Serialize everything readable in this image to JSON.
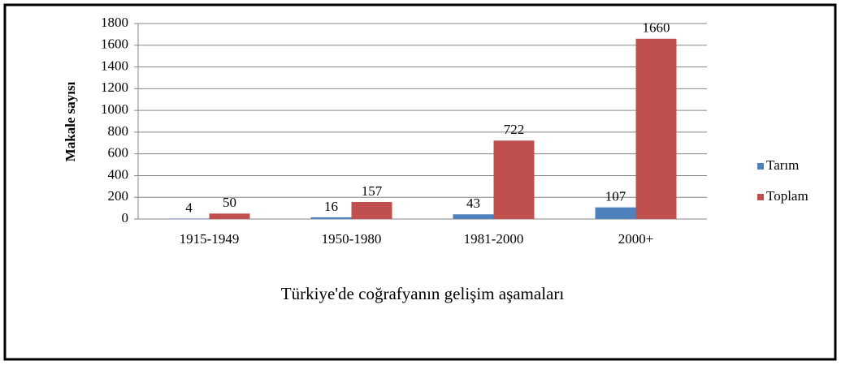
{
  "chart_data": {
    "type": "bar",
    "categories": [
      "1915-1949",
      "1950-1980",
      "1981-2000",
      "2000+"
    ],
    "series": [
      {
        "name": "Tarım",
        "color": "#4f81bd",
        "values": [
          4,
          16,
          43,
          107
        ]
      },
      {
        "name": "Toplam",
        "color": "#c0504d",
        "values": [
          50,
          157,
          722,
          1660
        ]
      }
    ],
    "xlabel": "Türkiye'de coğrafyanın gelişim aşamaları",
    "ylabel": "Makale sayısı",
    "ylim": [
      0,
      1800
    ],
    "yticks": [
      0,
      200,
      400,
      600,
      800,
      1000,
      1200,
      1400,
      1600,
      1800
    ],
    "grid": true,
    "legend": "right"
  }
}
